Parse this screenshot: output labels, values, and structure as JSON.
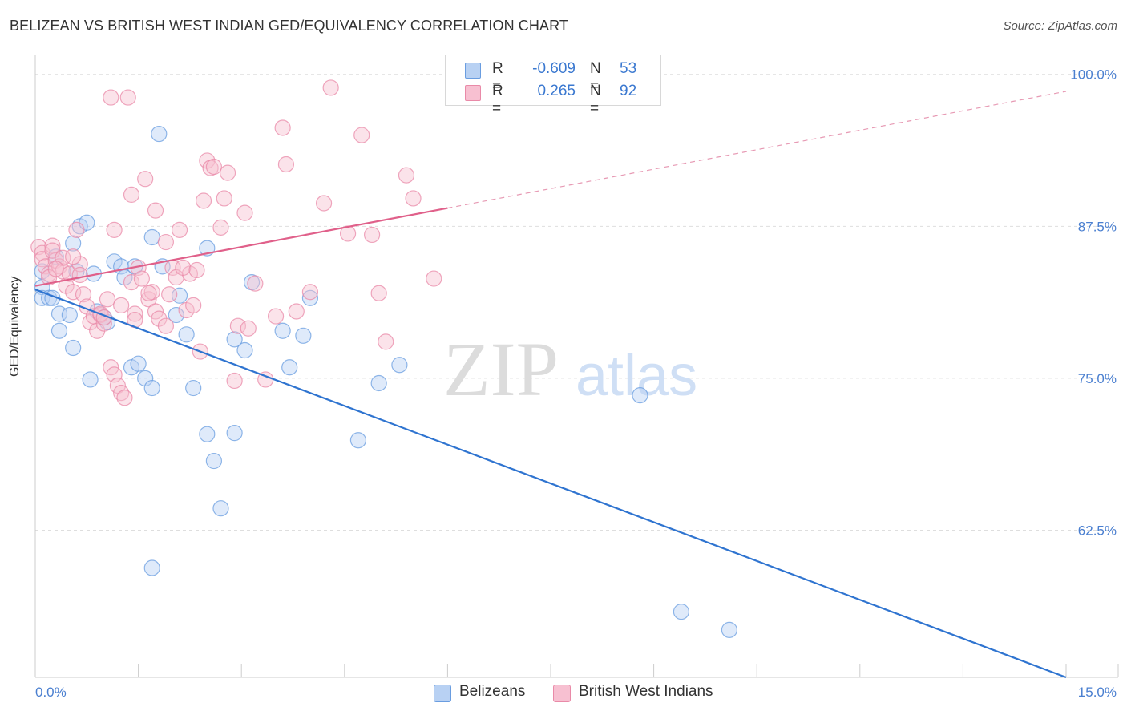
{
  "chart_data": {
    "type": "scatter",
    "title": "BELIZEAN VS BRITISH WEST INDIAN GED/EQUIVALENCY CORRELATION CHART",
    "source": "Source: ZipAtlas.com",
    "ylabel": "GED/Equivalency",
    "xlabel": "",
    "xlim": [
      0,
      15
    ],
    "ylim": [
      50.4,
      101.5
    ],
    "x_tick_labels": [
      "0.0%",
      "15.0%"
    ],
    "y_ticks": [
      62.5,
      75.0,
      87.5,
      100.0
    ],
    "y_tick_labels": [
      "62.5%",
      "75.0%",
      "87.5%",
      "100.0%"
    ],
    "grid": true,
    "watermark": {
      "zip": "ZIP",
      "atlas": "atlas"
    },
    "legend": {
      "rows": [
        {
          "r_label": "R =",
          "r_value": "-0.609",
          "n_label": "N =",
          "n_value": "53"
        },
        {
          "r_label": "R =",
          "r_value": "0.265",
          "n_label": "N =",
          "n_value": "92"
        }
      ]
    },
    "series": [
      {
        "name": "Belizeans",
        "color": "#6a9de0",
        "fill": "#b8d1f3",
        "trend": {
          "x": [
            0.0,
            15.0
          ],
          "y": [
            82.3,
            50.4
          ],
          "dashed_to": null
        },
        "points": [
          [
            0.1,
            82.5
          ],
          [
            0.1,
            81.6
          ],
          [
            0.2,
            81.6
          ],
          [
            0.1,
            83.8
          ],
          [
            0.25,
            81.6
          ],
          [
            0.3,
            85.0
          ],
          [
            0.35,
            80.3
          ],
          [
            0.5,
            80.2
          ],
          [
            0.55,
            86.1
          ],
          [
            0.6,
            83.8
          ],
          [
            0.65,
            87.5
          ],
          [
            0.75,
            87.8
          ],
          [
            0.85,
            83.6
          ],
          [
            0.9,
            80.5
          ],
          [
            1.0,
            80.0
          ],
          [
            1.05,
            79.6
          ],
          [
            1.15,
            84.6
          ],
          [
            1.25,
            84.2
          ],
          [
            1.3,
            83.3
          ],
          [
            1.45,
            84.2
          ],
          [
            1.4,
            75.9
          ],
          [
            1.5,
            76.2
          ],
          [
            1.6,
            75.0
          ],
          [
            1.7,
            74.2
          ],
          [
            1.8,
            95.1
          ],
          [
            1.7,
            86.6
          ],
          [
            1.85,
            84.2
          ],
          [
            2.05,
            80.2
          ],
          [
            2.1,
            81.8
          ],
          [
            2.2,
            78.6
          ],
          [
            2.3,
            74.2
          ],
          [
            2.5,
            85.7
          ],
          [
            2.5,
            70.4
          ],
          [
            2.6,
            68.2
          ],
          [
            2.7,
            64.3
          ],
          [
            2.9,
            70.5
          ],
          [
            2.9,
            78.2
          ],
          [
            3.05,
            77.3
          ],
          [
            3.15,
            82.9
          ],
          [
            3.6,
            78.9
          ],
          [
            3.7,
            75.9
          ],
          [
            3.9,
            78.5
          ],
          [
            4.0,
            81.6
          ],
          [
            4.7,
            69.9
          ],
          [
            5.0,
            74.6
          ],
          [
            5.3,
            76.1
          ],
          [
            0.35,
            78.9
          ],
          [
            1.7,
            59.4
          ],
          [
            8.8,
            73.6
          ],
          [
            9.4,
            55.8
          ],
          [
            10.1,
            54.3
          ],
          [
            0.55,
            77.5
          ],
          [
            0.8,
            74.9
          ]
        ]
      },
      {
        "name": "British West Indians",
        "color": "#e98aa8",
        "fill": "#f7c0d1",
        "trend": {
          "x": [
            0.0,
            6.0
          ],
          "y": [
            82.6,
            89.0
          ],
          "dashed_x": [
            6.0,
            15.0
          ],
          "dashed_y": [
            89.0,
            98.6
          ]
        },
        "points": [
          [
            0.05,
            85.8
          ],
          [
            0.1,
            85.3
          ],
          [
            0.1,
            84.8
          ],
          [
            0.15,
            84.2
          ],
          [
            0.2,
            83.6
          ],
          [
            0.2,
            83.3
          ],
          [
            0.25,
            85.9
          ],
          [
            0.3,
            84.7
          ],
          [
            0.35,
            84.2
          ],
          [
            0.4,
            83.8
          ],
          [
            0.45,
            82.6
          ],
          [
            0.5,
            83.6
          ],
          [
            0.55,
            82.1
          ],
          [
            0.6,
            87.2
          ],
          [
            0.65,
            84.4
          ],
          [
            0.7,
            81.9
          ],
          [
            0.75,
            80.9
          ],
          [
            0.8,
            79.6
          ],
          [
            0.85,
            80.1
          ],
          [
            0.9,
            78.9
          ],
          [
            0.95,
            80.2
          ],
          [
            1.0,
            79.5
          ],
          [
            1.05,
            81.5
          ],
          [
            1.1,
            75.9
          ],
          [
            1.15,
            75.3
          ],
          [
            1.2,
            74.4
          ],
          [
            1.25,
            73.8
          ],
          [
            1.3,
            73.4
          ],
          [
            1.4,
            82.9
          ],
          [
            1.45,
            80.3
          ],
          [
            1.5,
            84.1
          ],
          [
            1.55,
            83.2
          ],
          [
            1.65,
            81.5
          ],
          [
            1.7,
            82.1
          ],
          [
            1.75,
            80.5
          ],
          [
            1.8,
            79.9
          ],
          [
            1.9,
            79.3
          ],
          [
            1.95,
            81.9
          ],
          [
            2.0,
            84.1
          ],
          [
            2.05,
            83.3
          ],
          [
            2.1,
            87.2
          ],
          [
            2.2,
            80.6
          ],
          [
            2.25,
            83.6
          ],
          [
            2.3,
            81.0
          ],
          [
            2.4,
            77.2
          ],
          [
            2.45,
            89.6
          ],
          [
            2.5,
            92.9
          ],
          [
            2.55,
            92.3
          ],
          [
            2.6,
            92.4
          ],
          [
            2.7,
            87.4
          ],
          [
            2.75,
            89.8
          ],
          [
            2.8,
            91.9
          ],
          [
            2.9,
            74.8
          ],
          [
            2.95,
            79.3
          ],
          [
            3.05,
            88.6
          ],
          [
            3.1,
            79.1
          ],
          [
            3.2,
            82.8
          ],
          [
            3.35,
            74.9
          ],
          [
            3.5,
            80.1
          ],
          [
            3.6,
            95.6
          ],
          [
            3.65,
            92.6
          ],
          [
            3.8,
            80.5
          ],
          [
            4.0,
            82.1
          ],
          [
            4.2,
            89.4
          ],
          [
            4.3,
            98.9
          ],
          [
            4.55,
            86.9
          ],
          [
            4.75,
            95.0
          ],
          [
            4.9,
            86.8
          ],
          [
            5.0,
            82.0
          ],
          [
            5.1,
            78.0
          ],
          [
            5.4,
            91.7
          ],
          [
            5.5,
            89.8
          ],
          [
            5.8,
            83.2
          ],
          [
            1.1,
            98.1
          ],
          [
            1.35,
            98.1
          ],
          [
            1.6,
            91.4
          ],
          [
            1.4,
            90.1
          ],
          [
            1.15,
            87.2
          ],
          [
            1.9,
            86.2
          ],
          [
            1.75,
            88.8
          ],
          [
            0.25,
            85.5
          ],
          [
            0.4,
            84.9
          ],
          [
            0.55,
            85.0
          ],
          [
            0.65,
            83.5
          ],
          [
            0.95,
            80.3
          ],
          [
            1.0,
            80.0
          ],
          [
            1.25,
            81.0
          ],
          [
            1.45,
            79.8
          ],
          [
            1.65,
            82.0
          ],
          [
            2.15,
            84.1
          ],
          [
            2.35,
            83.9
          ],
          [
            0.3,
            84.0
          ]
        ]
      }
    ]
  }
}
